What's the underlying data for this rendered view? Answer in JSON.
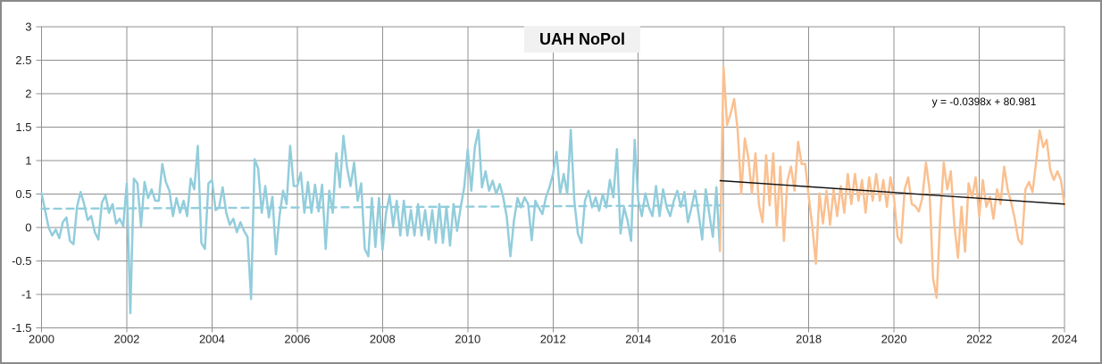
{
  "frame": {
    "background": "#ffffff",
    "border_color": "#8a8a8a",
    "gridline_color": "#909090",
    "tick_label_color": "#1f1f1f"
  },
  "chart": {
    "title": "UAH NoPol",
    "equation_label": "y = -0.0398x + 80.981"
  },
  "chart_data": {
    "type": "line",
    "title": "UAH NoPol",
    "xlabel": "",
    "ylabel": "",
    "xlim": [
      2000,
      2024
    ],
    "ylim": [
      -1.5,
      3
    ],
    "x_ticks": [
      2000,
      2002,
      2004,
      2006,
      2008,
      2010,
      2012,
      2014,
      2016,
      2018,
      2020,
      2022,
      2024
    ],
    "y_ticks": [
      3,
      2.5,
      2,
      1.5,
      1,
      0.5,
      0,
      -0.5,
      -1,
      -1.5
    ],
    "grid": true,
    "legend_position": "none",
    "annotations": [
      {
        "text": "y = -0.0398x + 80.981",
        "x": 2021.3,
        "y": 1.75,
        "color": "#000000"
      }
    ],
    "series": [
      {
        "name": "uah-nopol-monthly-2000-2015",
        "color": "#92CDDC",
        "style": "solid",
        "width": 2.5,
        "x_start": 2000.0,
        "x_step_years": 0.0833333,
        "values": [
          0.51,
          0.26,
          0.0,
          -0.12,
          -0.03,
          -0.16,
          0.08,
          0.15,
          -0.2,
          -0.25,
          0.31,
          0.53,
          0.35,
          0.11,
          0.17,
          -0.07,
          -0.18,
          0.37,
          0.48,
          0.22,
          0.35,
          0.06,
          0.13,
          0.02,
          0.66,
          -1.28,
          0.73,
          0.66,
          0.02,
          0.68,
          0.44,
          0.57,
          0.4,
          0.4,
          0.95,
          0.68,
          0.55,
          0.17,
          0.44,
          0.22,
          0.4,
          0.17,
          0.73,
          0.57,
          1.22,
          -0.23,
          -0.32,
          0.66,
          0.71,
          0.26,
          0.3,
          0.6,
          0.22,
          0.04,
          0.13,
          -0.07,
          0.08,
          -0.05,
          -0.14,
          -1.07,
          1.02,
          0.88,
          0.22,
          0.62,
          0.15,
          0.46,
          -0.4,
          0.17,
          0.55,
          0.35,
          1.22,
          0.62,
          0.62,
          0.82,
          0.22,
          0.68,
          0.22,
          0.64,
          0.24,
          0.64,
          -0.32,
          0.55,
          0.22,
          1.11,
          0.6,
          1.37,
          0.9,
          0.62,
          0.97,
          0.4,
          0.66,
          -0.32,
          -0.43,
          0.44,
          -0.29,
          0.44,
          -0.34,
          0.22,
          0.48,
          0.02,
          0.4,
          -0.12,
          0.4,
          -0.12,
          0.26,
          -0.12,
          0.35,
          -0.12,
          0.26,
          -0.18,
          0.26,
          -0.23,
          0.35,
          -0.23,
          0.31,
          -0.27,
          0.35,
          -0.05,
          0.3,
          0.6,
          1.17,
          0.55,
          1.2,
          1.46,
          0.6,
          0.84,
          0.55,
          0.7,
          0.5,
          0.65,
          0.45,
          0.15,
          -0.43,
          0.1,
          0.44,
          0.3,
          0.45,
          0.35,
          -0.19,
          0.4,
          0.3,
          0.2,
          0.45,
          0.6,
          0.8,
          1.13,
          0.5,
          0.8,
          0.5,
          1.46,
          0.4,
          -0.09,
          -0.23,
          0.4,
          0.55,
          0.3,
          0.45,
          0.25,
          0.5,
          0.3,
          0.71,
          0.45,
          1.17,
          -0.09,
          0.3,
          0.1,
          -0.2,
          1.31,
          0.4,
          0.17,
          0.51,
          0.3,
          0.17,
          0.62,
          0.17,
          0.57,
          0.3,
          0.17,
          0.4,
          0.55,
          0.31,
          0.53,
          0.08,
          0.3,
          0.55,
          0.2,
          -0.18,
          0.57,
          0.2,
          -0.14,
          0.6,
          -0.35
        ]
      },
      {
        "name": "uah-nopol-monthly-2016-2024",
        "color": "#FAC090",
        "style": "solid",
        "width": 2.5,
        "x_start": 2015.9167,
        "x_step_years": 0.0833333,
        "values": [
          -0.35,
          2.4,
          1.53,
          1.7,
          1.92,
          1.45,
          0.51,
          1.33,
          1.04,
          0.51,
          1.11,
          0.33,
          0.08,
          1.08,
          0.33,
          1.11,
          0.0,
          0.91,
          -0.2,
          0.7,
          0.91,
          0.55,
          1.28,
          0.95,
          0.95,
          0.46,
          0.02,
          -0.54,
          0.51,
          0.06,
          0.55,
          0.04,
          0.57,
          0.17,
          0.62,
          0.22,
          0.8,
          0.35,
          0.8,
          0.4,
          0.71,
          0.22,
          0.75,
          0.4,
          0.8,
          0.4,
          0.71,
          0.31,
          0.75,
          0.44,
          -0.14,
          -0.23,
          0.57,
          0.75,
          0.35,
          0.32,
          0.24,
          0.45,
          0.97,
          0.57,
          -0.76,
          -1.05,
          0.13,
          0.97,
          0.57,
          0.84,
          0.04,
          -0.45,
          0.31,
          -0.36,
          0.66,
          0.45,
          0.75,
          0.17,
          0.71,
          0.31,
          0.46,
          0.13,
          0.57,
          0.35,
          0.91,
          0.57,
          0.37,
          0.13,
          -0.18,
          -0.25,
          0.57,
          0.68,
          0.53,
          0.97,
          1.45,
          1.2,
          1.31,
          0.86,
          0.71,
          0.84,
          0.71,
          0.33
        ]
      },
      {
        "name": "trend-dashed-2000-2015",
        "color": "#92CDDC",
        "style": "dashed",
        "width": 2.4,
        "points": [
          [
            2000.0,
            0.28
          ],
          [
            2015.92,
            0.33
          ]
        ]
      },
      {
        "name": "trend-linear-2016-2024",
        "color": "#111111",
        "style": "solid",
        "width": 1.4,
        "points": [
          [
            2015.92,
            0.7
          ],
          [
            2024.0,
            0.35
          ]
        ]
      }
    ]
  }
}
